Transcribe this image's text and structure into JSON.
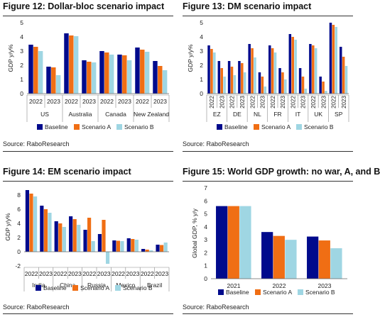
{
  "colors": {
    "baseline": "#000a8c",
    "scenario_a": "#f06e14",
    "scenario_b": "#9fd6e3"
  },
  "chart_data": [
    {
      "id": "fig12",
      "type": "bar",
      "title": "Figure 12: Dollar-bloc scenario impact",
      "source": "Source: RaboResearch",
      "ylabel": "GDP y/y%",
      "ylim": [
        0,
        5
      ],
      "yticks": [
        "0",
        "1",
        "2",
        "3",
        "4",
        "5"
      ],
      "groups": [
        "US",
        "Australia",
        "Canada",
        "New Zealand"
      ],
      "categories": [
        "2022",
        "2023",
        "2022",
        "2023",
        "2022",
        "2023",
        "2022",
        "2023"
      ],
      "series": [
        {
          "name": "Baseline",
          "values": [
            3.45,
            1.9,
            4.25,
            2.35,
            3.0,
            2.75,
            3.25,
            2.3
          ]
        },
        {
          "name": "Scenario A",
          "values": [
            3.3,
            1.85,
            4.1,
            2.25,
            2.9,
            2.7,
            3.1,
            1.95
          ]
        },
        {
          "name": "Scenario B",
          "values": [
            3.0,
            1.3,
            4.05,
            2.2,
            2.75,
            2.35,
            2.95,
            1.65
          ]
        }
      ]
    },
    {
      "id": "fig13",
      "type": "bar",
      "title": "Figure 13: DM scenario impact",
      "source": "Source: RaboResearch",
      "ylabel": "GDP y/y%",
      "ylim": [
        0,
        5
      ],
      "yticks": [
        "0",
        "1",
        "2",
        "3",
        "4",
        "5"
      ],
      "groups": [
        "EZ",
        "DE",
        "NL",
        "FR",
        "IT",
        "UK",
        "SP"
      ],
      "categories": [
        "2022",
        "2023",
        "2022",
        "2023",
        "2022",
        "2023",
        "2022",
        "2023",
        "2022",
        "2023",
        "2022",
        "2023",
        "2022",
        "2023"
      ],
      "series": [
        {
          "name": "Baseline",
          "values": [
            3.4,
            2.3,
            2.3,
            2.3,
            3.5,
            1.5,
            3.4,
            1.8,
            4.2,
            1.8,
            3.5,
            1.2,
            5.0,
            3.3
          ]
        },
        {
          "name": "Scenario A",
          "values": [
            3.15,
            1.8,
            1.9,
            2.15,
            3.2,
            1.2,
            3.2,
            1.5,
            4.0,
            1.2,
            3.4,
            0.85,
            4.85,
            2.6
          ]
        },
        {
          "name": "Scenario B",
          "values": [
            2.9,
            1.2,
            1.3,
            1.5,
            2.55,
            0.5,
            2.9,
            1.0,
            3.8,
            0.35,
            3.2,
            0.2,
            4.7,
            1.95
          ]
        }
      ]
    },
    {
      "id": "fig14",
      "type": "bar",
      "title": "Figure 14: EM scenario impact",
      "source": "Source: RaboResearch",
      "ylabel": "GDP y/y%",
      "ylim": [
        -2,
        9
      ],
      "yticks": [
        "-2",
        "0",
        "2",
        "4",
        "6",
        "8"
      ],
      "groups": [
        "India",
        "China",
        "Russia",
        "Mexico",
        "Brazil"
      ],
      "categories": [
        "2022",
        "2023",
        "2022",
        "2023",
        "2022",
        "2023",
        "2022",
        "2023",
        "2022",
        "2023"
      ],
      "series": [
        {
          "name": "Baseline",
          "values": [
            8.7,
            6.5,
            4.3,
            5.0,
            3.1,
            2.5,
            1.6,
            1.9,
            0.4,
            1.0
          ]
        },
        {
          "name": "Scenario A",
          "values": [
            8.2,
            6.0,
            4.0,
            4.6,
            4.8,
            4.5,
            1.55,
            1.8,
            0.3,
            0.95
          ]
        },
        {
          "name": "Scenario B",
          "values": [
            7.8,
            5.5,
            3.5,
            3.8,
            1.5,
            -1.7,
            1.5,
            1.7,
            0.2,
            1.3
          ]
        }
      ]
    },
    {
      "id": "fig15",
      "type": "bar",
      "title": "Figure 15: World GDP growth: no war, A, and B",
      "source": "Source: RaboResearch",
      "ylabel": "Global GDP, % y/y",
      "ylim": [
        0,
        7
      ],
      "yticks": [
        "0",
        "1",
        "2",
        "3",
        "4",
        "5",
        "6",
        "7"
      ],
      "categories": [
        "2021",
        "2022",
        "2023"
      ],
      "series": [
        {
          "name": "Baseline",
          "values": [
            5.6,
            3.6,
            3.25
          ]
        },
        {
          "name": "Scenario A",
          "values": [
            5.6,
            3.3,
            2.95
          ]
        },
        {
          "name": "Scenario B",
          "values": [
            5.6,
            3.0,
            2.35
          ]
        }
      ]
    }
  ]
}
